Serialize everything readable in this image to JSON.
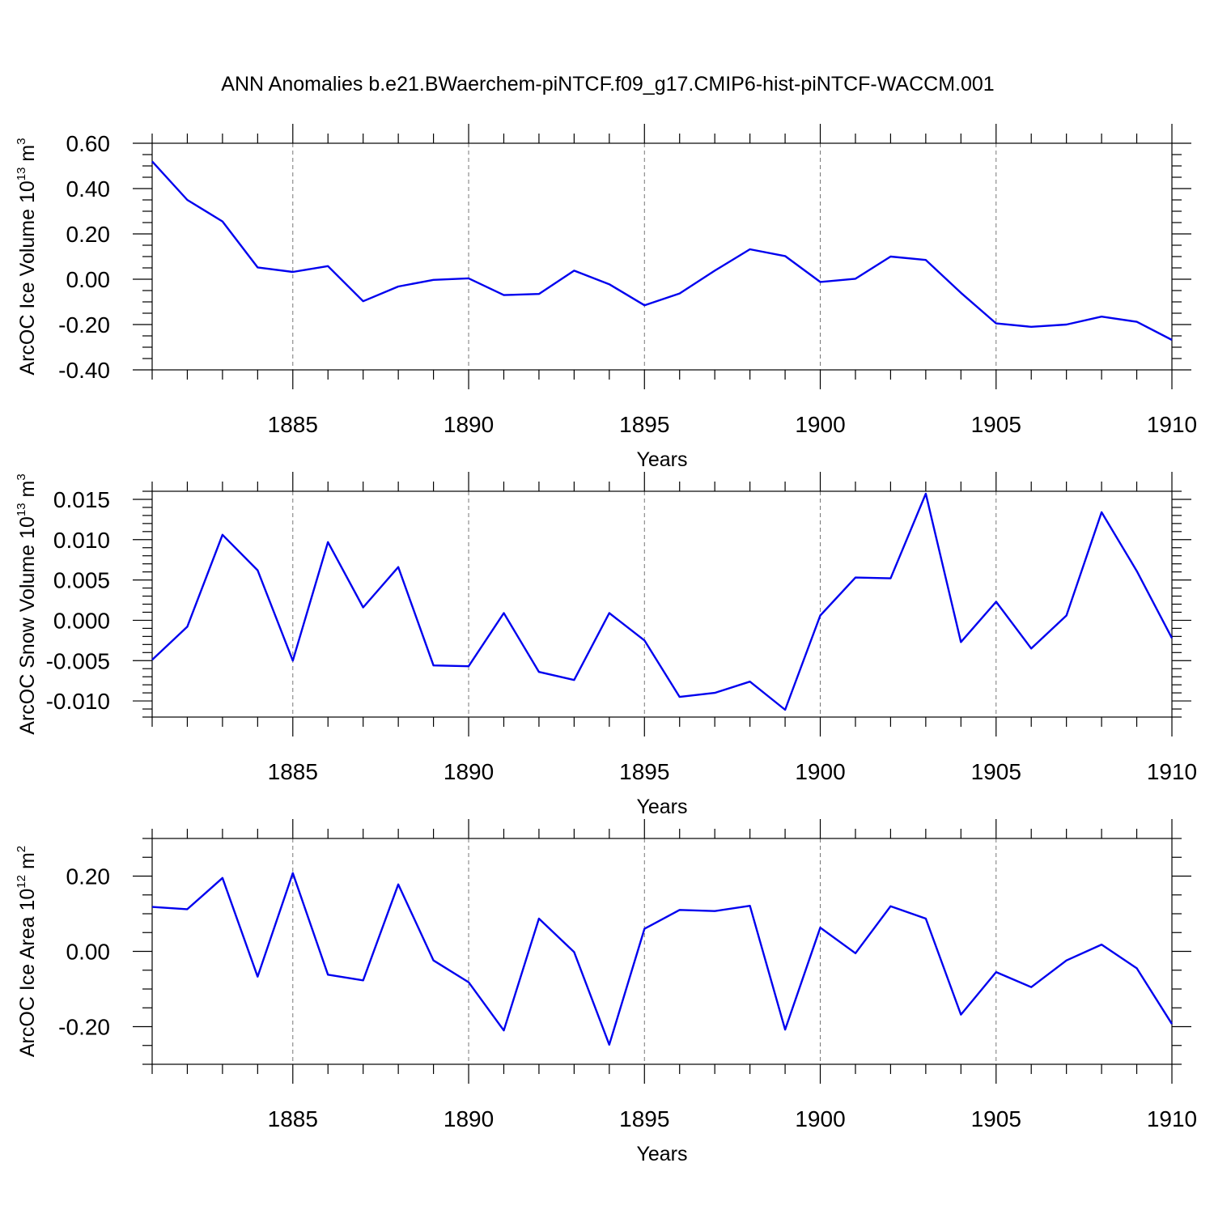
{
  "figure_title": "ANN Anomalies b.e21.BWaerchem-piNTCF.f09_g17.CMIP6-hist-piNTCF-WACCM.001",
  "line_color": "#0000ee",
  "chart_data": [
    {
      "type": "line",
      "ylabel": "ArcOC Ice Volume 10",
      "ylabel_exponent": "13",
      "ylabel_unit": " m",
      "ylabel_unit_exponent": "3",
      "xlabel": "Years",
      "xlim": [
        1881,
        1910
      ],
      "ylim": [
        -0.4,
        0.6
      ],
      "yticks": [
        -0.4,
        -0.2,
        0.0,
        0.2,
        0.4,
        0.6
      ],
      "ytick_labels": [
        "-0.40",
        "-0.20",
        "0.00",
        "0.20",
        "0.40",
        "0.60"
      ],
      "yminor_step": 0.05,
      "xticks": [
        1885,
        1890,
        1895,
        1900,
        1905,
        1910
      ],
      "xtick_labels": [
        "1885",
        "1890",
        "1895",
        "1900",
        "1905",
        "1910"
      ],
      "grid": "dashed vertical at major x ticks",
      "x": [
        1881,
        1882,
        1883,
        1884,
        1885,
        1886,
        1887,
        1888,
        1889,
        1890,
        1891,
        1892,
        1893,
        1894,
        1895,
        1896,
        1897,
        1898,
        1899,
        1900,
        1901,
        1902,
        1903,
        1904,
        1905,
        1906,
        1907,
        1908,
        1909,
        1910
      ],
      "values": [
        0.52,
        0.35,
        0.255,
        0.052,
        0.032,
        0.058,
        -0.097,
        -0.032,
        -0.003,
        0.004,
        -0.07,
        -0.065,
        0.038,
        -0.022,
        -0.115,
        -0.063,
        0.038,
        0.132,
        0.102,
        -0.012,
        0.002,
        0.1,
        0.085,
        -0.06,
        -0.195,
        -0.21,
        -0.2,
        -0.165,
        -0.188,
        -0.268
      ]
    },
    {
      "type": "line",
      "ylabel": "ArcOC Snow Volume 10",
      "ylabel_exponent": "13",
      "ylabel_unit": " m",
      "ylabel_unit_exponent": "3",
      "xlabel": "Years",
      "xlim": [
        1881,
        1910
      ],
      "ylim": [
        -0.012,
        0.016
      ],
      "yticks": [
        -0.01,
        -0.005,
        0.0,
        0.005,
        0.01,
        0.015
      ],
      "ytick_labels": [
        "-0.010",
        "-0.005",
        "0.000",
        "0.005",
        "0.010",
        "0.015"
      ],
      "yminor_step": 0.001,
      "xticks": [
        1885,
        1890,
        1895,
        1900,
        1905,
        1910
      ],
      "xtick_labels": [
        "1885",
        "1890",
        "1895",
        "1900",
        "1905",
        "1910"
      ],
      "grid": "dashed vertical at major x ticks",
      "x": [
        1881,
        1882,
        1883,
        1884,
        1885,
        1886,
        1887,
        1888,
        1889,
        1890,
        1891,
        1892,
        1893,
        1894,
        1895,
        1896,
        1897,
        1898,
        1899,
        1900,
        1901,
        1902,
        1903,
        1904,
        1905,
        1906,
        1907,
        1908,
        1909,
        1910
      ],
      "values": [
        -0.0049,
        -0.0008,
        0.0106,
        0.0062,
        -0.005,
        0.0097,
        0.0016,
        0.0066,
        -0.0056,
        -0.0057,
        0.0009,
        -0.0064,
        -0.0074,
        0.0009,
        -0.0025,
        -0.0095,
        -0.009,
        -0.0076,
        -0.0111,
        0.0006,
        0.0053,
        0.0052,
        0.0157,
        -0.0027,
        0.0023,
        -0.0035,
        0.0006,
        0.0134,
        0.0061,
        -0.0022
      ]
    },
    {
      "type": "line",
      "ylabel": "ArcOC Ice Area 10",
      "ylabel_exponent": "12",
      "ylabel_unit": " m",
      "ylabel_unit_exponent": "2",
      "xlabel": "Years",
      "xlim": [
        1881,
        1910
      ],
      "ylim": [
        -0.3,
        0.3
      ],
      "yticks": [
        -0.2,
        0.0,
        0.2
      ],
      "ytick_labels": [
        "-0.20",
        "0.00",
        "0.20"
      ],
      "yminor_step": 0.05,
      "xticks": [
        1885,
        1890,
        1895,
        1900,
        1905,
        1910
      ],
      "xtick_labels": [
        "1885",
        "1890",
        "1895",
        "1900",
        "1905",
        "1910"
      ],
      "grid": "dashed vertical at major x ticks",
      "x": [
        1881,
        1882,
        1883,
        1884,
        1885,
        1886,
        1887,
        1888,
        1889,
        1890,
        1891,
        1892,
        1893,
        1894,
        1895,
        1896,
        1897,
        1898,
        1899,
        1900,
        1901,
        1902,
        1903,
        1904,
        1905,
        1906,
        1907,
        1908,
        1909,
        1910
      ],
      "values": [
        0.118,
        0.112,
        0.195,
        -0.067,
        0.208,
        -0.062,
        -0.077,
        0.178,
        -0.024,
        -0.082,
        -0.21,
        0.087,
        -0.002,
        -0.248,
        0.06,
        0.11,
        0.107,
        0.121,
        -0.208,
        0.063,
        -0.005,
        0.12,
        0.087,
        -0.168,
        -0.055,
        -0.095,
        -0.024,
        0.018,
        -0.045,
        -0.193
      ]
    }
  ]
}
